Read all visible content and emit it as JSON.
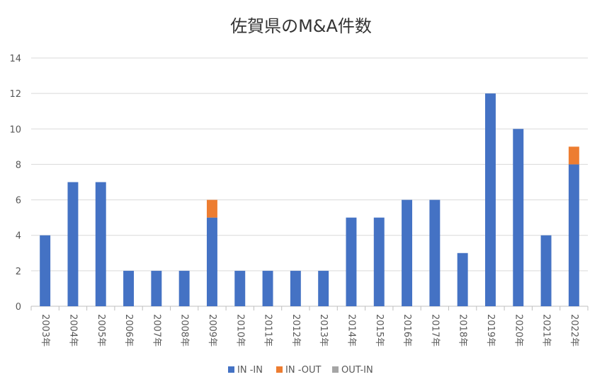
{
  "chart_data": {
    "type": "bar",
    "stacked": true,
    "title": "佐賀県のM&A件数",
    "xlabel": "",
    "ylabel": "",
    "ylim": [
      0,
      14
    ],
    "yticks": [
      0,
      2,
      4,
      6,
      8,
      10,
      12,
      14
    ],
    "grid": true,
    "legend_position": "bottom",
    "categories": [
      "2003年",
      "2004年",
      "2005年",
      "2006年",
      "2007年",
      "2008年",
      "2009年",
      "2010年",
      "2011年",
      "2012年",
      "2013年",
      "2014年",
      "2015年",
      "2016年",
      "2017年",
      "2018年",
      "2019年",
      "2020年",
      "2021年",
      "2022年"
    ],
    "series": [
      {
        "name": "IN -IN",
        "color": "#4472C4",
        "values": [
          4,
          7,
          7,
          2,
          2,
          2,
          5,
          2,
          2,
          2,
          2,
          5,
          5,
          6,
          6,
          3,
          12,
          10,
          4,
          8
        ]
      },
      {
        "name": "IN -OUT",
        "color": "#ED7D31",
        "values": [
          0,
          0,
          0,
          0,
          0,
          0,
          1,
          0,
          0,
          0,
          0,
          0,
          0,
          0,
          0,
          0,
          0,
          0,
          0,
          1
        ]
      },
      {
        "name": "OUT-IN",
        "color": "#A5A5A5",
        "values": [
          0,
          0,
          0,
          0,
          0,
          0,
          0,
          0,
          0,
          0,
          0,
          0,
          0,
          0,
          0,
          0,
          0,
          0,
          0,
          0
        ]
      }
    ]
  }
}
